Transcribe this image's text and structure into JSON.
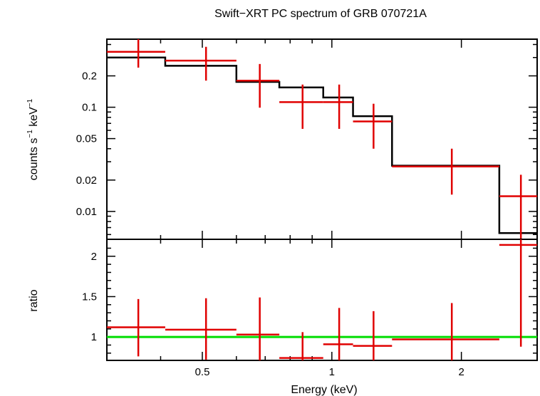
{
  "chart_data": [
    {
      "type": "line",
      "panel": "spectrum",
      "title": "Swift−XRT PC spectrum of GRB 070721A",
      "ylabel_main": "counts s",
      "ylabel_sup1": "−1",
      "ylabel_mid": " keV",
      "ylabel_sup2": "−1",
      "xscale": "log",
      "yscale": "log",
      "xlim": [
        0.3,
        3.0
      ],
      "ylim": [
        0.0054,
        0.45
      ],
      "yticks": [
        {
          "v": 0.01,
          "label": "0.01"
        },
        {
          "v": 0.02,
          "label": "0.02"
        },
        {
          "v": 0.05,
          "label": "0.05"
        },
        {
          "v": 0.1,
          "label": "0.1"
        },
        {
          "v": 0.2,
          "label": "0.2"
        }
      ],
      "data_points": [
        {
          "xlo": 0.3,
          "xhi": 0.41,
          "x": 0.355,
          "y": 0.34,
          "ylo": 0.24,
          "yhi": 0.45
        },
        {
          "xlo": 0.41,
          "xhi": 0.6,
          "x": 0.51,
          "y": 0.28,
          "ylo": 0.18,
          "yhi": 0.38
        },
        {
          "xlo": 0.6,
          "xhi": 0.755,
          "x": 0.68,
          "y": 0.18,
          "ylo": 0.099,
          "yhi": 0.26
        },
        {
          "xlo": 0.755,
          "xhi": 0.955,
          "x": 0.855,
          "y": 0.112,
          "ylo": 0.062,
          "yhi": 0.165
        },
        {
          "xlo": 0.955,
          "xhi": 1.12,
          "x": 1.04,
          "y": 0.112,
          "ylo": 0.062,
          "yhi": 0.165
        },
        {
          "xlo": 1.12,
          "xhi": 1.38,
          "x": 1.25,
          "y": 0.073,
          "ylo": 0.04,
          "yhi": 0.108
        },
        {
          "xlo": 1.38,
          "xhi": 2.45,
          "x": 1.9,
          "y": 0.027,
          "ylo": 0.0145,
          "yhi": 0.04
        },
        {
          "xlo": 2.45,
          "xhi": 3.0,
          "x": 2.75,
          "y": 0.014,
          "ylo": 0.0052,
          "yhi": 0.0225
        }
      ],
      "model": [
        {
          "xlo": 0.3,
          "xhi": 0.41,
          "y": 0.3
        },
        {
          "xlo": 0.41,
          "xhi": 0.6,
          "y": 0.25
        },
        {
          "xlo": 0.6,
          "xhi": 0.755,
          "y": 0.175
        },
        {
          "xlo": 0.755,
          "xhi": 0.955,
          "y": 0.155
        },
        {
          "xlo": 0.955,
          "xhi": 1.12,
          "y": 0.124
        },
        {
          "xlo": 1.12,
          "xhi": 1.38,
          "y": 0.082
        },
        {
          "xlo": 1.38,
          "xhi": 2.45,
          "y": 0.0275
        },
        {
          "xlo": 2.45,
          "xhi": 3.0,
          "y": 0.0062
        }
      ],
      "colors": {
        "data": "#e00000",
        "model": "#000000",
        "axes": "#000000"
      }
    },
    {
      "type": "line",
      "panel": "ratio",
      "ylabel": "ratio",
      "xlabel": "Energy (keV)",
      "xscale": "log",
      "yscale": "linear",
      "xlim": [
        0.3,
        3.0
      ],
      "ylim": [
        0.71,
        2.21
      ],
      "xticks": [
        {
          "v": 0.5,
          "label": "0.5"
        },
        {
          "v": 1,
          "label": "1"
        },
        {
          "v": 2,
          "label": "2"
        }
      ],
      "yticks": [
        {
          "v": 1,
          "label": "1"
        },
        {
          "v": 1.5,
          "label": "1.5"
        },
        {
          "v": 2,
          "label": "2"
        }
      ],
      "reference_line": 1.0,
      "data_points": [
        {
          "xlo": 0.3,
          "xhi": 0.41,
          "x": 0.355,
          "y": 1.12,
          "ylo": 0.76,
          "yhi": 1.47
        },
        {
          "xlo": 0.41,
          "xhi": 0.6,
          "x": 0.51,
          "y": 1.09,
          "ylo": 0.72,
          "yhi": 1.48
        },
        {
          "xlo": 0.6,
          "xhi": 0.755,
          "x": 0.68,
          "y": 1.03,
          "ylo": 0.71,
          "yhi": 1.49
        },
        {
          "xlo": 0.755,
          "xhi": 0.955,
          "x": 0.855,
          "y": 0.74,
          "ylo": 0.71,
          "yhi": 1.06
        },
        {
          "xlo": 0.955,
          "xhi": 1.12,
          "x": 1.04,
          "y": 0.91,
          "ylo": 0.71,
          "yhi": 1.36
        },
        {
          "xlo": 1.12,
          "xhi": 1.38,
          "x": 1.25,
          "y": 0.89,
          "ylo": 0.71,
          "yhi": 1.32
        },
        {
          "xlo": 1.38,
          "xhi": 2.45,
          "x": 1.9,
          "y": 0.97,
          "ylo": 0.71,
          "yhi": 1.42
        },
        {
          "xlo": 2.45,
          "xhi": 3.0,
          "x": 2.75,
          "y": 2.14,
          "ylo": 0.88,
          "yhi": 2.21
        }
      ],
      "colors": {
        "data": "#e00000",
        "reference": "#00dd00",
        "axes": "#000000"
      }
    }
  ]
}
